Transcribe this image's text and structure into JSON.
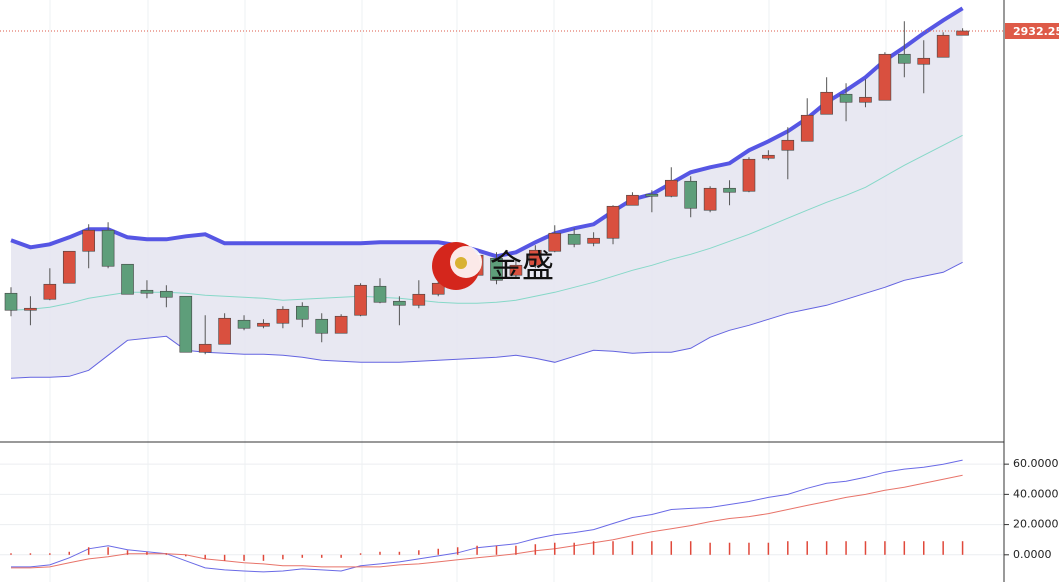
{
  "chart_data": [
    {
      "type": "candlestick",
      "watermark": "金盛",
      "ylim": [
        2523.25,
        2963.25
      ],
      "last_price": 2932.25,
      "last_price_color": "#de5a48",
      "up_color": "#d9503f",
      "down_color": "#5e9e7a",
      "band_fill": "#e4e4f0",
      "open": [
        2670,
        2653,
        2664,
        2680,
        2712,
        2733,
        2699,
        2673,
        2672,
        2667,
        2611,
        2619,
        2643,
        2637,
        2640,
        2657,
        2644,
        2630,
        2648,
        2677,
        2662,
        2658,
        2669,
        2688,
        2688,
        2705,
        2688,
        2698,
        2712,
        2729,
        2720,
        2725,
        2758,
        2769,
        2767,
        2782,
        2753,
        2775,
        2772,
        2805,
        2813,
        2822,
        2849,
        2869,
        2861,
        2863,
        2909,
        2899,
        2906,
        2928
      ],
      "high": [
        2676,
        2667,
        2695,
        2712,
        2739,
        2741,
        2699,
        2683,
        2678,
        2667,
        2648,
        2650,
        2648,
        2644,
        2657,
        2661,
        2650,
        2649,
        2680,
        2685,
        2667,
        2683,
        2693,
        2713,
        2713,
        2711,
        2703,
        2718,
        2738,
        2735,
        2731,
        2758,
        2771,
        2773,
        2796,
        2787,
        2777,
        2783,
        2806,
        2813,
        2836,
        2865,
        2886,
        2880,
        2884,
        2911,
        2942,
        2923,
        2931,
        2935
      ],
      "low": [
        2647,
        2638,
        2663,
        2680,
        2695,
        2695,
        2669,
        2665,
        2656,
        2611,
        2609,
        2619,
        2633,
        2635,
        2635,
        2636,
        2621,
        2630,
        2647,
        2660,
        2638,
        2655,
        2667,
        2687,
        2688,
        2679,
        2685,
        2695,
        2711,
        2716,
        2717,
        2719,
        2758,
        2751,
        2766,
        2746,
        2751,
        2758,
        2771,
        2803,
        2784,
        2822,
        2849,
        2842,
        2856,
        2863,
        2886,
        2870,
        2906,
        2928
      ],
      "close": [
        2653,
        2655,
        2679,
        2712,
        2733,
        2697,
        2669,
        2670,
        2666,
        2611,
        2619,
        2645,
        2635,
        2640,
        2654,
        2644,
        2630,
        2647,
        2678,
        2661,
        2658,
        2669,
        2680,
        2705,
        2708,
        2683,
        2698,
        2713,
        2730,
        2719,
        2725,
        2757,
        2768,
        2767,
        2783,
        2755,
        2775,
        2771,
        2804,
        2808,
        2823,
        2848,
        2871,
        2861,
        2866,
        2909,
        2900,
        2905,
        2928,
        2932.25
      ],
      "series": [
        {
          "color": "#5656e4",
          "values": [
            2723,
            2716,
            2719,
            2726,
            2734,
            2734,
            2726,
            2724,
            2724,
            2727,
            2729,
            2720,
            2720,
            2720,
            2720,
            2720,
            2720,
            2720,
            2720,
            2721,
            2721,
            2721,
            2721,
            2718,
            2713,
            2707,
            2711,
            2721,
            2730,
            2735,
            2739,
            2752,
            2764,
            2769,
            2780,
            2791,
            2796,
            2800,
            2813,
            2822,
            2832,
            2845,
            2861,
            2873,
            2886,
            2903,
            2916,
            2930,
            2943,
            2955
          ]
        },
        {
          "color": "#86d8c8",
          "values": [
            2653,
            2654,
            2656,
            2660,
            2665,
            2668,
            2671,
            2671,
            2671,
            2670,
            2668,
            2667,
            2666,
            2665,
            2663,
            2664,
            2665,
            2666,
            2667,
            2666,
            2665,
            2663,
            2661,
            2660,
            2660,
            2661,
            2663,
            2667,
            2671,
            2676,
            2681,
            2687,
            2693,
            2698,
            2704,
            2709,
            2715,
            2722,
            2729,
            2737,
            2745,
            2753,
            2761,
            2768,
            2776,
            2787,
            2798,
            2808,
            2818,
            2828
          ]
        },
        {
          "color": "#6464e0",
          "values": [
            2585,
            2586,
            2586,
            2587,
            2593,
            2608,
            2623,
            2625,
            2627,
            2613,
            2611,
            2610,
            2609,
            2609,
            2608,
            2606,
            2603,
            2602,
            2601,
            2601,
            2601,
            2602,
            2603,
            2604,
            2605,
            2606,
            2608,
            2605,
            2601,
            2607,
            2613,
            2612,
            2610,
            2611,
            2611,
            2615,
            2626,
            2633,
            2638,
            2644,
            2650,
            2654,
            2658,
            2664,
            2670,
            2676,
            2683,
            2687,
            2691,
            2701
          ]
        }
      ]
    },
    {
      "type": "line",
      "ylim": [
        -18,
        74
      ],
      "yticks": [
        {
          "value": 60,
          "label": "60.0000"
        },
        {
          "value": 40,
          "label": "40.0000"
        },
        {
          "value": 20,
          "label": "20.0000"
        },
        {
          "value": 0,
          "label": "0.0000"
        }
      ],
      "grid": true,
      "series": [
        {
          "color": "#6a6ae6",
          "values": [
            -8,
            -8,
            -6.7,
            -2,
            4,
            6,
            3.3,
            2,
            0.7,
            -4,
            -8.7,
            -10,
            -10.7,
            -11.3,
            -10.7,
            -9.3,
            -10,
            -10.7,
            -7.3,
            -6,
            -4.7,
            -2.7,
            -0.7,
            1.3,
            4.7,
            6,
            7.3,
            10.7,
            13.3,
            14.7,
            16.7,
            20.7,
            24.7,
            26.7,
            30,
            30.7,
            31.3,
            33.3,
            35.3,
            38,
            40,
            44,
            47.3,
            48.7,
            51.3,
            54.7,
            56.7,
            58,
            60,
            62.7
          ]
        },
        {
          "color": "#e8746a",
          "values": [
            -8.7,
            -8.7,
            -8,
            -5.3,
            -2.7,
            -1.3,
            0.7,
            0.7,
            0.7,
            0,
            -2.7,
            -4,
            -5.3,
            -6,
            -7.3,
            -7.3,
            -8,
            -8,
            -8,
            -8,
            -6.7,
            -6,
            -4.7,
            -3.3,
            -2,
            -0.7,
            0.7,
            2.7,
            4,
            6,
            8,
            10,
            12.7,
            15.3,
            17.3,
            19.3,
            22,
            24,
            25.3,
            27.3,
            30,
            32.7,
            35.3,
            38,
            40,
            42.7,
            44.7,
            47.3,
            50,
            52.7
          ]
        },
        {
          "color": "#e0483a",
          "style": "bar",
          "values": [
            1,
            1,
            1,
            2,
            5,
            5,
            3,
            2,
            1,
            -1,
            -3,
            -4,
            -4,
            -4,
            -3,
            -2,
            -2,
            -2,
            1,
            2,
            2,
            3,
            4,
            5,
            6,
            6,
            6,
            7,
            8,
            8,
            9,
            9,
            9,
            9,
            9,
            9,
            8,
            8,
            8,
            8,
            9,
            9,
            9,
            9,
            9,
            9,
            9,
            9,
            9,
            9
          ]
        }
      ]
    }
  ]
}
